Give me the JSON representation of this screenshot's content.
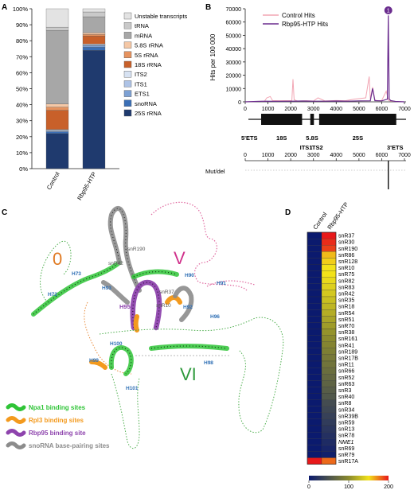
{
  "panels": {
    "A": "A",
    "B": "B",
    "C": "C",
    "D": "D"
  },
  "chart_data": [
    {
      "panel": "A",
      "type": "bar",
      "stacked": true,
      "categories": [
        "Control",
        "Rbp95-HTP"
      ],
      "ylim": [
        0,
        100
      ],
      "yticks": [
        "0%",
        "10%",
        "20%",
        "30%",
        "40%",
        "50%",
        "60%",
        "70%",
        "80%",
        "90%",
        "100%"
      ],
      "series": [
        {
          "name": "25S rRNA",
          "color": "#1f3a6e",
          "values": [
            22,
            74
          ]
        },
        {
          "name": "snoRNA",
          "color": "#3b6fb6",
          "values": [
            1,
            2
          ]
        },
        {
          "name": "ETS1",
          "color": "#7da1d4",
          "values": [
            0.5,
            1
          ]
        },
        {
          "name": "ITS1",
          "color": "#aec3e6",
          "values": [
            0.5,
            0.5
          ]
        },
        {
          "name": "ITS2",
          "color": "#d7e2f2",
          "values": [
            0.5,
            0.5
          ]
        },
        {
          "name": "18S rRNA",
          "color": "#c8602a",
          "values": [
            12,
            5
          ]
        },
        {
          "name": "5S rRNA",
          "color": "#e6935f",
          "values": [
            2,
            1
          ]
        },
        {
          "name": "5.8S rRNA",
          "color": "#f5c8a6",
          "values": [
            2,
            1
          ]
        },
        {
          "name": "mRNA",
          "color": "#a7a7a7",
          "values": [
            46,
            10
          ]
        },
        {
          "name": "tRNA",
          "color": "#c9c9c9",
          "values": [
            2,
            3
          ]
        },
        {
          "name": "Unstable transcripts",
          "color": "#e3e3e3",
          "values": [
            11.5,
            2
          ]
        }
      ],
      "legend_order": [
        "Unstable transcripts",
        "tRNA",
        "mRNA",
        "5.8S rRNA",
        "5S rRNA",
        "18S rRNA",
        "ITS2",
        "ITS1",
        "ETS1",
        "snoRNA",
        "25S rRNA"
      ]
    },
    {
      "panel": "B",
      "type": "line",
      "ylabel": "Hits per 100 000",
      "xlim": [
        0,
        7000
      ],
      "ylim": [
        0,
        70000
      ],
      "xticks": [
        "0",
        "1000",
        "2000",
        "3000",
        "4000",
        "5000",
        "6000",
        "7000"
      ],
      "yticks": [
        "0",
        "10000",
        "20000",
        "30000",
        "40000",
        "50000",
        "60000",
        "70000"
      ],
      "series": [
        {
          "name": "Control Hits",
          "color": "#f2a6b4",
          "x": [
            0,
            850,
            950,
            1100,
            1200,
            1500,
            2050,
            2100,
            2150,
            2300,
            2700,
            3000,
            3200,
            3500,
            4000,
            4400,
            4800,
            5300,
            5450,
            5500,
            5600,
            5700,
            5800,
            6000,
            6200,
            6300,
            6400,
            6600,
            7000
          ],
          "y": [
            0,
            500,
            3000,
            4000,
            1000,
            800,
            1000,
            17000,
            1500,
            600,
            800,
            600,
            3000,
            700,
            1000,
            800,
            2000,
            3000,
            19000,
            2000,
            11000,
            1500,
            800,
            1000,
            8000,
            1000,
            500,
            300,
            0
          ]
        },
        {
          "name": "Rbp95-HTP Hits",
          "color": "#6a2c8e",
          "x": [
            0,
            500,
            900,
            1300,
            2000,
            2500,
            3000,
            3500,
            4000,
            4500,
            5000,
            5500,
            5600,
            5700,
            6000,
            6250,
            6290,
            6330,
            6400,
            6600,
            7000
          ],
          "y": [
            0,
            300,
            500,
            400,
            500,
            600,
            500,
            500,
            600,
            500,
            700,
            800,
            10000,
            900,
            700,
            2000,
            65000,
            2000,
            900,
            300,
            0
          ]
        }
      ],
      "annotation_badge": "1",
      "gene_map": {
        "labels": [
          "5'ETS",
          "18S",
          "ITS1",
          "5.8S",
          "ITS2",
          "25S",
          "3'ETS"
        ]
      },
      "mutdel_label": "Mut/del",
      "mutdel_axis_ticks": [
        "0",
        "1000",
        "2000",
        "3000",
        "4000",
        "5000",
        "6000",
        "7000"
      ]
    },
    {
      "panel": "D",
      "type": "heatmap",
      "columns": [
        "Control",
        "Rbp95-HTP"
      ],
      "rows": [
        "snR37",
        "snR30",
        "snR190",
        "snR86",
        "snR128",
        "snR10",
        "snR75",
        "snR82",
        "snR83",
        "snR42",
        "snR35",
        "snR18",
        "snR54",
        "snR51",
        "snR70",
        "snR38",
        "snR161",
        "snR41",
        "snR189",
        "snR17B",
        "snR11",
        "snR66",
        "snR52",
        "snR63",
        "snR3",
        "snR40",
        "snR8",
        "snR34",
        "snR39B",
        "snR59",
        "snR13",
        "snR78",
        "NME1",
        "snR69",
        "snR79",
        "snR17A"
      ],
      "values": [
        [
          0,
          200
        ],
        [
          0,
          195
        ],
        [
          0,
          190
        ],
        [
          0,
          160
        ],
        [
          0,
          155
        ],
        [
          0,
          150
        ],
        [
          0,
          150
        ],
        [
          0,
          145
        ],
        [
          0,
          140
        ],
        [
          0,
          135
        ],
        [
          0,
          130
        ],
        [
          0,
          125
        ],
        [
          0,
          120
        ],
        [
          0,
          115
        ],
        [
          0,
          110
        ],
        [
          0,
          105
        ],
        [
          0,
          100
        ],
        [
          0,
          95
        ],
        [
          0,
          90
        ],
        [
          0,
          85
        ],
        [
          0,
          80
        ],
        [
          0,
          75
        ],
        [
          0,
          70
        ],
        [
          0,
          65
        ],
        [
          0,
          60
        ],
        [
          0,
          55
        ],
        [
          0,
          45
        ],
        [
          0,
          40
        ],
        [
          0,
          35
        ],
        [
          0,
          30
        ],
        [
          0,
          25
        ],
        [
          0,
          20
        ],
        [
          0,
          15
        ],
        [
          0,
          10
        ],
        [
          0,
          5
        ],
        [
          200,
          180
        ]
      ],
      "scale_ticks": [
        "0",
        "100",
        "200"
      ],
      "scale_range": [
        0,
        200
      ]
    }
  ],
  "panel_c": {
    "domain_labels": [
      "0",
      "V",
      "VI"
    ],
    "helix_labels": [
      "H73",
      "H72",
      "H93",
      "H90",
      "H91",
      "H92",
      "H95",
      "H96",
      "H100",
      "H99",
      "H98",
      "H101"
    ],
    "snorna_labels": [
      "snR190",
      "snR42",
      "snR37",
      "snR10"
    ],
    "legend": [
      {
        "label": "Npa1 binding sites",
        "color": "#2fc437"
      },
      {
        "label": "Rpl3 binding sites",
        "color": "#f39a1e"
      },
      {
        "label": "Rbp95 binding site",
        "color": "#8e44ad"
      },
      {
        "label": "snoRNA base-pairing sites",
        "color": "#8c8c8c"
      }
    ],
    "colors": {
      "domain0": "#e07b24",
      "domainV": "#d0318b",
      "domainVI": "#2e9a3c",
      "helix": "#2f6fb5",
      "dots_green": "#4cae4c",
      "dots_pink": "#e06aa0",
      "dots_orange": "#e88a3a"
    }
  }
}
